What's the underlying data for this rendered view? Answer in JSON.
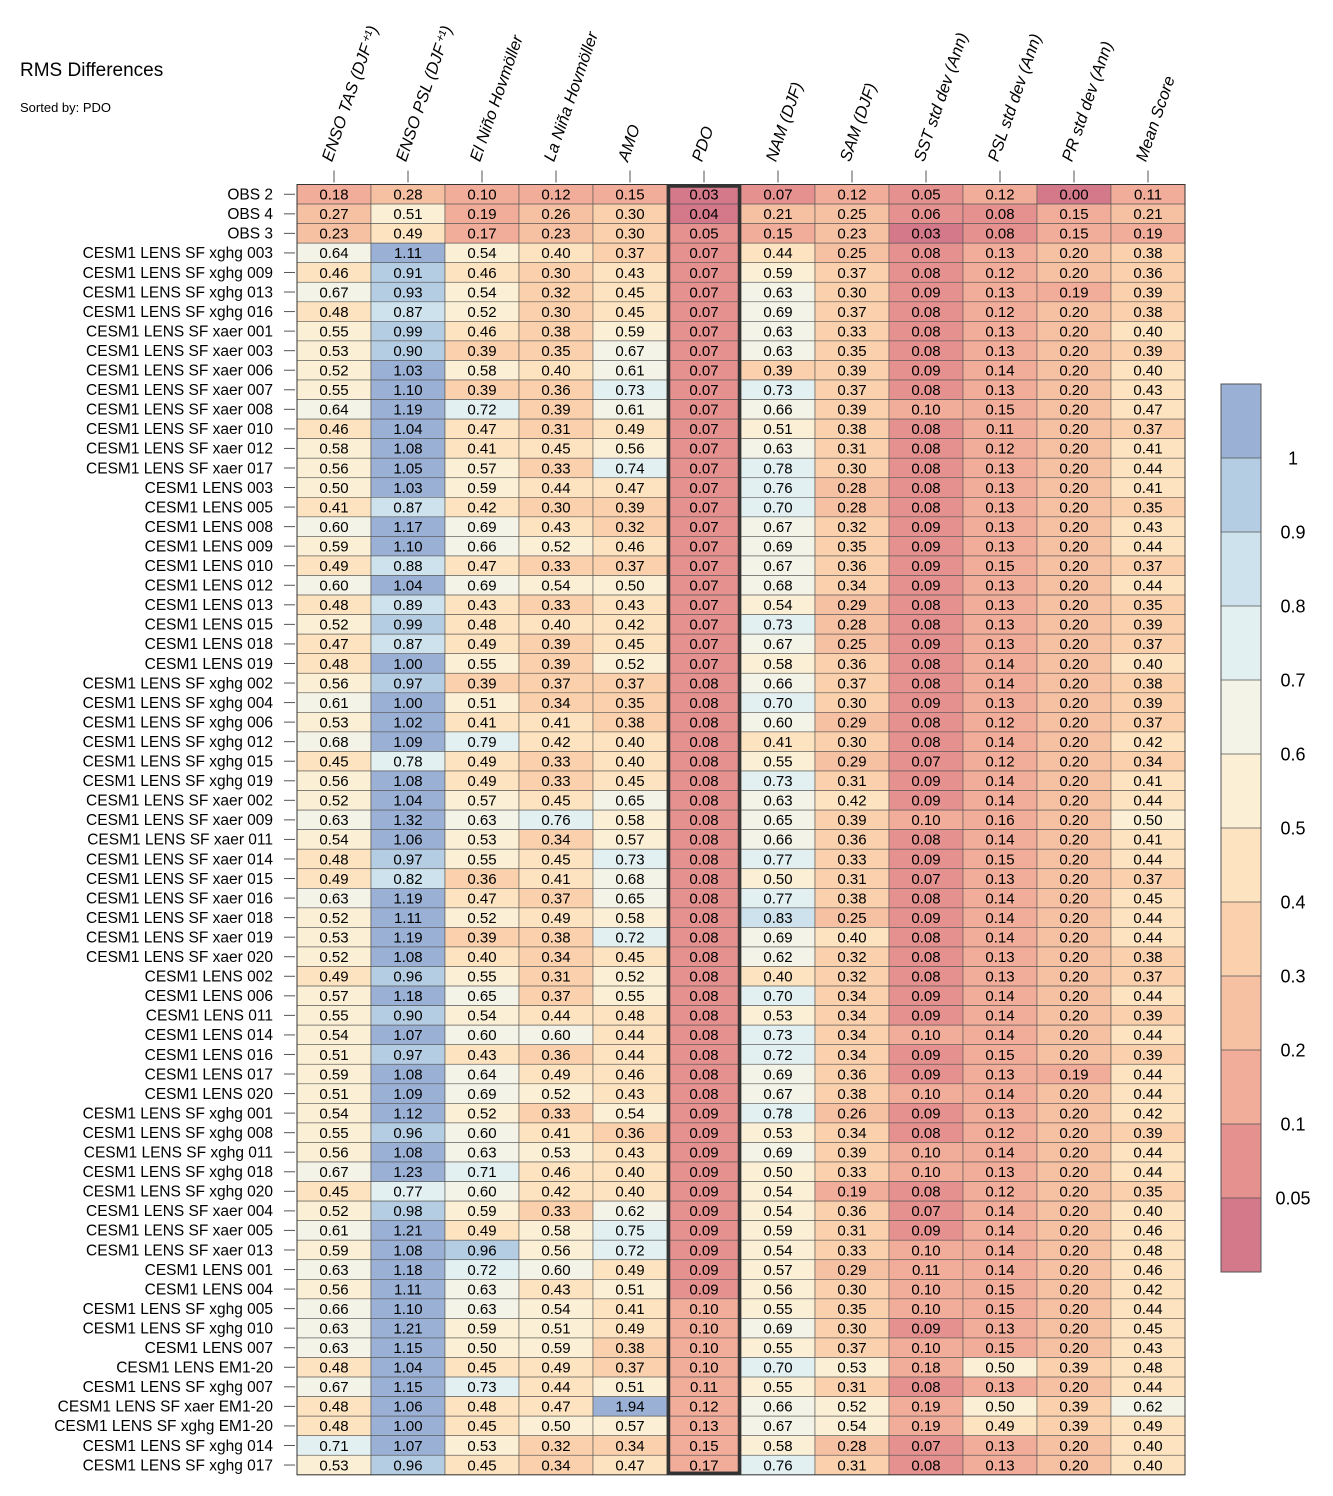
{
  "chart_data": {
    "type": "heatmap",
    "title": "RMS Differences",
    "subtitle": "Sorted by: PDO",
    "columns": [
      "ENSO TAS (DJF⁺¹)",
      "ENSO PSL (DJF⁺¹)",
      "El Niño Hovmöller",
      "La Niña Hovmöller",
      "AMO",
      "PDO",
      "NAM (DJF)",
      "SAM (DJF)",
      "SST std dev (Ann)",
      "PSL std dev (Ann)",
      "PR std dev (Ann)",
      "Mean Score"
    ],
    "highlighted_column": "PDO",
    "rows": [
      {
        "label": "OBS 2",
        "values": [
          0.18,
          0.28,
          0.1,
          0.12,
          0.15,
          0.03,
          0.07,
          0.12,
          0.05,
          0.12,
          0.0,
          0.11
        ]
      },
      {
        "label": "OBS 4",
        "values": [
          0.27,
          0.51,
          0.19,
          0.26,
          0.3,
          0.04,
          0.21,
          0.25,
          0.06,
          0.08,
          0.15,
          0.21
        ]
      },
      {
        "label": "OBS 3",
        "values": [
          0.23,
          0.49,
          0.17,
          0.23,
          0.3,
          0.05,
          0.15,
          0.23,
          0.03,
          0.08,
          0.15,
          0.19
        ]
      },
      {
        "label": "CESM1 LENS SF xghg 003",
        "values": [
          0.64,
          1.11,
          0.54,
          0.4,
          0.37,
          0.07,
          0.44,
          0.25,
          0.08,
          0.13,
          0.2,
          0.38
        ]
      },
      {
        "label": "CESM1 LENS SF xghg 009",
        "values": [
          0.46,
          0.91,
          0.46,
          0.3,
          0.43,
          0.07,
          0.59,
          0.37,
          0.08,
          0.12,
          0.2,
          0.36
        ]
      },
      {
        "label": "CESM1 LENS SF xghg 013",
        "values": [
          0.67,
          0.93,
          0.54,
          0.32,
          0.45,
          0.07,
          0.63,
          0.3,
          0.09,
          0.13,
          0.19,
          0.39
        ]
      },
      {
        "label": "CESM1 LENS SF xghg 016",
        "values": [
          0.48,
          0.87,
          0.52,
          0.3,
          0.45,
          0.07,
          0.69,
          0.37,
          0.08,
          0.12,
          0.2,
          0.38
        ]
      },
      {
        "label": "CESM1 LENS SF xaer 001",
        "values": [
          0.55,
          0.99,
          0.46,
          0.38,
          0.59,
          0.07,
          0.63,
          0.33,
          0.08,
          0.13,
          0.2,
          0.4
        ]
      },
      {
        "label": "CESM1 LENS SF xaer 003",
        "values": [
          0.53,
          0.9,
          0.39,
          0.35,
          0.67,
          0.07,
          0.63,
          0.35,
          0.08,
          0.13,
          0.2,
          0.39
        ]
      },
      {
        "label": "CESM1 LENS SF xaer 006",
        "values": [
          0.52,
          1.03,
          0.58,
          0.4,
          0.61,
          0.07,
          0.39,
          0.39,
          0.09,
          0.14,
          0.2,
          0.4
        ]
      },
      {
        "label": "CESM1 LENS SF xaer 007",
        "values": [
          0.55,
          1.1,
          0.39,
          0.36,
          0.73,
          0.07,
          0.73,
          0.37,
          0.08,
          0.13,
          0.2,
          0.43
        ]
      },
      {
        "label": "CESM1 LENS SF xaer 008",
        "values": [
          0.64,
          1.19,
          0.72,
          0.39,
          0.61,
          0.07,
          0.66,
          0.39,
          0.1,
          0.15,
          0.2,
          0.47
        ]
      },
      {
        "label": "CESM1 LENS SF xaer 010",
        "values": [
          0.46,
          1.04,
          0.47,
          0.31,
          0.49,
          0.07,
          0.51,
          0.38,
          0.08,
          0.11,
          0.2,
          0.37
        ]
      },
      {
        "label": "CESM1 LENS SF xaer 012",
        "values": [
          0.58,
          1.08,
          0.41,
          0.45,
          0.56,
          0.07,
          0.63,
          0.31,
          0.08,
          0.12,
          0.2,
          0.41
        ]
      },
      {
        "label": "CESM1 LENS SF xaer 017",
        "values": [
          0.56,
          1.05,
          0.57,
          0.33,
          0.74,
          0.07,
          0.78,
          0.3,
          0.08,
          0.13,
          0.2,
          0.44
        ]
      },
      {
        "label": "CESM1 LENS 003",
        "values": [
          0.5,
          1.03,
          0.59,
          0.44,
          0.47,
          0.07,
          0.76,
          0.28,
          0.08,
          0.13,
          0.2,
          0.41
        ]
      },
      {
        "label": "CESM1 LENS 005",
        "values": [
          0.41,
          0.87,
          0.42,
          0.3,
          0.39,
          0.07,
          0.7,
          0.28,
          0.08,
          0.13,
          0.2,
          0.35
        ]
      },
      {
        "label": "CESM1 LENS 008",
        "values": [
          0.6,
          1.17,
          0.69,
          0.43,
          0.32,
          0.07,
          0.67,
          0.32,
          0.09,
          0.13,
          0.2,
          0.43
        ]
      },
      {
        "label": "CESM1 LENS 009",
        "values": [
          0.59,
          1.1,
          0.66,
          0.52,
          0.46,
          0.07,
          0.69,
          0.35,
          0.09,
          0.13,
          0.2,
          0.44
        ]
      },
      {
        "label": "CESM1 LENS 010",
        "values": [
          0.49,
          0.88,
          0.47,
          0.33,
          0.37,
          0.07,
          0.67,
          0.36,
          0.09,
          0.15,
          0.2,
          0.37
        ]
      },
      {
        "label": "CESM1 LENS 012",
        "values": [
          0.6,
          1.04,
          0.69,
          0.54,
          0.5,
          0.07,
          0.68,
          0.34,
          0.09,
          0.13,
          0.2,
          0.44
        ]
      },
      {
        "label": "CESM1 LENS 013",
        "values": [
          0.48,
          0.89,
          0.43,
          0.33,
          0.43,
          0.07,
          0.54,
          0.29,
          0.08,
          0.13,
          0.2,
          0.35
        ]
      },
      {
        "label": "CESM1 LENS 015",
        "values": [
          0.52,
          0.99,
          0.48,
          0.4,
          0.42,
          0.07,
          0.73,
          0.28,
          0.08,
          0.13,
          0.2,
          0.39
        ]
      },
      {
        "label": "CESM1 LENS 018",
        "values": [
          0.47,
          0.87,
          0.49,
          0.39,
          0.45,
          0.07,
          0.67,
          0.25,
          0.09,
          0.13,
          0.2,
          0.37
        ]
      },
      {
        "label": "CESM1 LENS 019",
        "values": [
          0.48,
          1.0,
          0.55,
          0.39,
          0.52,
          0.07,
          0.58,
          0.36,
          0.08,
          0.14,
          0.2,
          0.4
        ]
      },
      {
        "label": "CESM1 LENS SF xghg 002",
        "values": [
          0.56,
          0.97,
          0.39,
          0.37,
          0.37,
          0.08,
          0.66,
          0.37,
          0.08,
          0.14,
          0.2,
          0.38
        ]
      },
      {
        "label": "CESM1 LENS SF xghg 004",
        "values": [
          0.61,
          1.0,
          0.51,
          0.34,
          0.35,
          0.08,
          0.7,
          0.3,
          0.09,
          0.13,
          0.2,
          0.39
        ]
      },
      {
        "label": "CESM1 LENS SF xghg 006",
        "values": [
          0.53,
          1.02,
          0.41,
          0.41,
          0.38,
          0.08,
          0.6,
          0.29,
          0.08,
          0.12,
          0.2,
          0.37
        ]
      },
      {
        "label": "CESM1 LENS SF xghg 012",
        "values": [
          0.68,
          1.09,
          0.79,
          0.42,
          0.4,
          0.08,
          0.41,
          0.3,
          0.08,
          0.14,
          0.2,
          0.42
        ]
      },
      {
        "label": "CESM1 LENS SF xghg 015",
        "values": [
          0.45,
          0.78,
          0.49,
          0.33,
          0.4,
          0.08,
          0.55,
          0.29,
          0.07,
          0.12,
          0.2,
          0.34
        ]
      },
      {
        "label": "CESM1 LENS SF xghg 019",
        "values": [
          0.56,
          1.08,
          0.49,
          0.33,
          0.45,
          0.08,
          0.73,
          0.31,
          0.09,
          0.14,
          0.2,
          0.41
        ]
      },
      {
        "label": "CESM1 LENS SF xaer 002",
        "values": [
          0.52,
          1.04,
          0.57,
          0.45,
          0.65,
          0.08,
          0.63,
          0.42,
          0.09,
          0.14,
          0.2,
          0.44
        ]
      },
      {
        "label": "CESM1 LENS SF xaer 009",
        "values": [
          0.63,
          1.32,
          0.63,
          0.76,
          0.58,
          0.08,
          0.65,
          0.39,
          0.1,
          0.16,
          0.2,
          0.5
        ]
      },
      {
        "label": "CESM1 LENS SF xaer 011",
        "values": [
          0.54,
          1.06,
          0.53,
          0.34,
          0.57,
          0.08,
          0.66,
          0.36,
          0.08,
          0.14,
          0.2,
          0.41
        ]
      },
      {
        "label": "CESM1 LENS SF xaer 014",
        "values": [
          0.48,
          0.97,
          0.55,
          0.45,
          0.73,
          0.08,
          0.77,
          0.33,
          0.09,
          0.15,
          0.2,
          0.44
        ]
      },
      {
        "label": "CESM1 LENS SF xaer 015",
        "values": [
          0.49,
          0.82,
          0.36,
          0.41,
          0.68,
          0.08,
          0.5,
          0.31,
          0.07,
          0.13,
          0.2,
          0.37
        ]
      },
      {
        "label": "CESM1 LENS SF xaer 016",
        "values": [
          0.63,
          1.19,
          0.47,
          0.37,
          0.65,
          0.08,
          0.77,
          0.38,
          0.08,
          0.14,
          0.2,
          0.45
        ]
      },
      {
        "label": "CESM1 LENS SF xaer 018",
        "values": [
          0.52,
          1.11,
          0.52,
          0.49,
          0.58,
          0.08,
          0.83,
          0.25,
          0.09,
          0.14,
          0.2,
          0.44
        ]
      },
      {
        "label": "CESM1 LENS SF xaer 019",
        "values": [
          0.53,
          1.19,
          0.39,
          0.38,
          0.72,
          0.08,
          0.69,
          0.4,
          0.08,
          0.14,
          0.2,
          0.44
        ]
      },
      {
        "label": "CESM1 LENS SF xaer 020",
        "values": [
          0.52,
          1.08,
          0.4,
          0.34,
          0.45,
          0.08,
          0.62,
          0.32,
          0.08,
          0.13,
          0.2,
          0.38
        ]
      },
      {
        "label": "CESM1 LENS 002",
        "values": [
          0.49,
          0.96,
          0.55,
          0.31,
          0.52,
          0.08,
          0.4,
          0.32,
          0.08,
          0.13,
          0.2,
          0.37
        ]
      },
      {
        "label": "CESM1 LENS 006",
        "values": [
          0.57,
          1.18,
          0.65,
          0.37,
          0.55,
          0.08,
          0.7,
          0.34,
          0.09,
          0.14,
          0.2,
          0.44
        ]
      },
      {
        "label": "CESM1 LENS 011",
        "values": [
          0.55,
          0.9,
          0.54,
          0.44,
          0.48,
          0.08,
          0.53,
          0.34,
          0.09,
          0.14,
          0.2,
          0.39
        ]
      },
      {
        "label": "CESM1 LENS 014",
        "values": [
          0.54,
          1.07,
          0.6,
          0.6,
          0.44,
          0.08,
          0.73,
          0.34,
          0.1,
          0.14,
          0.2,
          0.44
        ]
      },
      {
        "label": "CESM1 LENS 016",
        "values": [
          0.51,
          0.97,
          0.43,
          0.36,
          0.44,
          0.08,
          0.72,
          0.34,
          0.09,
          0.15,
          0.2,
          0.39
        ]
      },
      {
        "label": "CESM1 LENS 017",
        "values": [
          0.59,
          1.08,
          0.64,
          0.49,
          0.46,
          0.08,
          0.69,
          0.36,
          0.09,
          0.13,
          0.19,
          0.44
        ]
      },
      {
        "label": "CESM1 LENS 020",
        "values": [
          0.51,
          1.09,
          0.69,
          0.52,
          0.43,
          0.08,
          0.67,
          0.38,
          0.1,
          0.14,
          0.2,
          0.44
        ]
      },
      {
        "label": "CESM1 LENS SF xghg 001",
        "values": [
          0.54,
          1.12,
          0.52,
          0.33,
          0.54,
          0.09,
          0.78,
          0.26,
          0.09,
          0.13,
          0.2,
          0.42
        ]
      },
      {
        "label": "CESM1 LENS SF xghg 008",
        "values": [
          0.55,
          0.96,
          0.6,
          0.41,
          0.36,
          0.09,
          0.53,
          0.34,
          0.08,
          0.12,
          0.2,
          0.39
        ]
      },
      {
        "label": "CESM1 LENS SF xghg 011",
        "values": [
          0.56,
          1.08,
          0.63,
          0.53,
          0.43,
          0.09,
          0.69,
          0.39,
          0.1,
          0.14,
          0.2,
          0.44
        ]
      },
      {
        "label": "CESM1 LENS SF xghg 018",
        "values": [
          0.67,
          1.23,
          0.71,
          0.46,
          0.4,
          0.09,
          0.5,
          0.33,
          0.1,
          0.13,
          0.2,
          0.44
        ]
      },
      {
        "label": "CESM1 LENS SF xghg 020",
        "values": [
          0.45,
          0.77,
          0.6,
          0.42,
          0.4,
          0.09,
          0.54,
          0.19,
          0.08,
          0.12,
          0.2,
          0.35
        ]
      },
      {
        "label": "CESM1 LENS SF xaer 004",
        "values": [
          0.52,
          0.98,
          0.59,
          0.33,
          0.62,
          0.09,
          0.54,
          0.36,
          0.07,
          0.14,
          0.2,
          0.4
        ]
      },
      {
        "label": "CESM1 LENS SF xaer 005",
        "values": [
          0.61,
          1.21,
          0.49,
          0.58,
          0.75,
          0.09,
          0.59,
          0.31,
          0.09,
          0.14,
          0.2,
          0.46
        ]
      },
      {
        "label": "CESM1 LENS SF xaer 013",
        "values": [
          0.59,
          1.08,
          0.96,
          0.56,
          0.72,
          0.09,
          0.54,
          0.33,
          0.1,
          0.14,
          0.2,
          0.48
        ]
      },
      {
        "label": "CESM1 LENS 001",
        "values": [
          0.63,
          1.18,
          0.72,
          0.6,
          0.49,
          0.09,
          0.57,
          0.29,
          0.11,
          0.14,
          0.2,
          0.46
        ]
      },
      {
        "label": "CESM1 LENS 004",
        "values": [
          0.56,
          1.11,
          0.63,
          0.43,
          0.51,
          0.09,
          0.56,
          0.3,
          0.1,
          0.15,
          0.2,
          0.42
        ]
      },
      {
        "label": "CESM1 LENS SF xghg 005",
        "values": [
          0.66,
          1.1,
          0.63,
          0.54,
          0.41,
          0.1,
          0.55,
          0.35,
          0.1,
          0.15,
          0.2,
          0.44
        ]
      },
      {
        "label": "CESM1 LENS SF xghg 010",
        "values": [
          0.63,
          1.21,
          0.59,
          0.51,
          0.49,
          0.1,
          0.69,
          0.3,
          0.09,
          0.13,
          0.2,
          0.45
        ]
      },
      {
        "label": "CESM1 LENS 007",
        "values": [
          0.63,
          1.15,
          0.5,
          0.59,
          0.38,
          0.1,
          0.55,
          0.37,
          0.1,
          0.15,
          0.2,
          0.43
        ]
      },
      {
        "label": "CESM1 LENS EM1-20",
        "values": [
          0.48,
          1.04,
          0.45,
          0.49,
          0.37,
          0.1,
          0.7,
          0.53,
          0.18,
          0.5,
          0.39,
          0.48
        ]
      },
      {
        "label": "CESM1 LENS SF xghg 007",
        "values": [
          0.67,
          1.15,
          0.73,
          0.44,
          0.51,
          0.11,
          0.55,
          0.31,
          0.08,
          0.13,
          0.2,
          0.44
        ]
      },
      {
        "label": "CESM1 LENS SF xaer EM1-20",
        "values": [
          0.48,
          1.06,
          0.48,
          0.47,
          1.94,
          0.12,
          0.66,
          0.52,
          0.19,
          0.5,
          0.39,
          0.62
        ]
      },
      {
        "label": "CESM1 LENS SF xghg EM1-20",
        "values": [
          0.48,
          1.0,
          0.45,
          0.5,
          0.57,
          0.13,
          0.67,
          0.54,
          0.19,
          0.49,
          0.39,
          0.49
        ]
      },
      {
        "label": "CESM1 LENS SF xghg 014",
        "values": [
          0.71,
          1.07,
          0.53,
          0.32,
          0.34,
          0.15,
          0.58,
          0.28,
          0.07,
          0.13,
          0.2,
          0.4
        ]
      },
      {
        "label": "CESM1 LENS SF xghg 017",
        "values": [
          0.53,
          0.96,
          0.45,
          0.34,
          0.47,
          0.17,
          0.76,
          0.31,
          0.08,
          0.13,
          0.2,
          0.4
        ]
      }
    ],
    "colorbar": {
      "boundaries": [
        0,
        0.05,
        0.1,
        0.2,
        0.3,
        0.4,
        0.5,
        0.6,
        0.7,
        0.8,
        0.9,
        1.0,
        2.0
      ],
      "colors": [
        "#d3798a",
        "#e4918f",
        "#f1ad9a",
        "#f6c0a2",
        "#fad1ac",
        "#fde3bf",
        "#fbf0d5",
        "#f3f3e7",
        "#e3f0f1",
        "#cde2ec",
        "#b5cde3",
        "#9ab0d4"
      ],
      "tick_labels": [
        "0.05",
        "0.1",
        "0.2",
        "0.3",
        "0.4",
        "0.5",
        "0.6",
        "0.7",
        "0.8",
        "0.9",
        "1"
      ]
    }
  }
}
